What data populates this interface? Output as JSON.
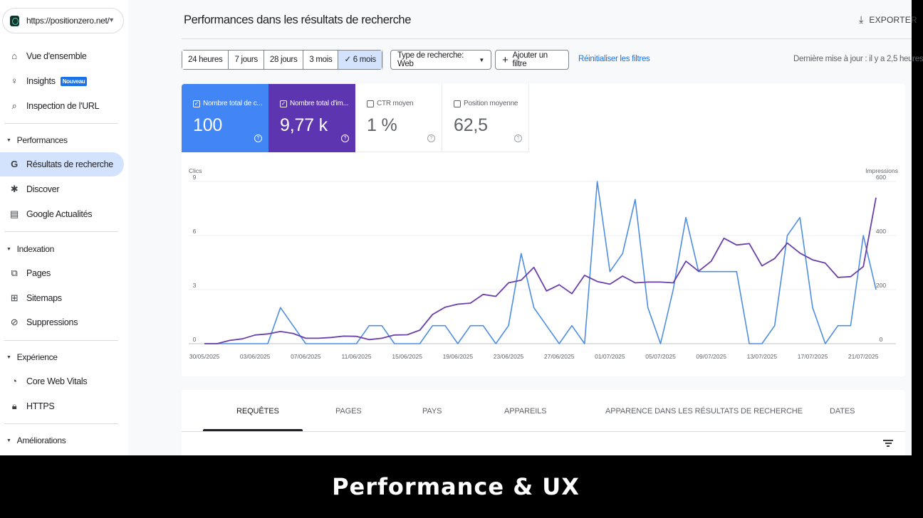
{
  "property": {
    "url": "https://positionzero.net/"
  },
  "sidebar": {
    "items": [
      {
        "label": "Vue d'ensemble",
        "icon": "home-icon"
      },
      {
        "label": "Insights",
        "icon": "lightbulb-icon",
        "badge": "Nouveau"
      },
      {
        "label": "Inspection de l'URL",
        "icon": "search-icon"
      }
    ],
    "sections": {
      "performances": {
        "title": "Performances",
        "items": [
          "Résultats de recherche",
          "Discover",
          "Google Actualités"
        ]
      },
      "indexation": {
        "title": "Indexation",
        "items": [
          "Pages",
          "Sitemaps",
          "Suppressions"
        ]
      },
      "experience": {
        "title": "Expérience",
        "items": [
          "Core Web Vitals",
          "HTTPS"
        ]
      },
      "ameliorations": {
        "title": "Améliorations"
      }
    }
  },
  "header": {
    "title": "Performances dans les résultats de recherche",
    "export_label": "EXPORTER"
  },
  "filters": {
    "ranges": [
      "24 heures",
      "7 jours",
      "28 jours",
      "3 mois",
      "6 mois"
    ],
    "selected_range": "6 mois",
    "search_type": "Type de recherche: Web",
    "add_filter": "Ajouter un filtre",
    "reset": "Réinitialiser les filtres",
    "last_update": "Dernière mise à jour : il y a 2,5 heures"
  },
  "metrics": [
    {
      "label": "Nombre total de c...",
      "value": "100",
      "checked": true,
      "color": "#4285f4"
    },
    {
      "label": "Nombre total d'im...",
      "value": "9,77 k",
      "checked": true,
      "color": "#5e35b1"
    },
    {
      "label": "CTR moyen",
      "value": "1 %",
      "checked": false
    },
    {
      "label": "Position moyenne",
      "value": "62,5",
      "checked": false
    }
  ],
  "chart_data": {
    "type": "line",
    "left_axis_label": "Clics",
    "right_axis_label": "Impressions",
    "left_ylim": [
      0,
      9
    ],
    "left_ticks": [
      "0",
      "3",
      "6",
      "9"
    ],
    "right_ylim": [
      0,
      600
    ],
    "right_ticks": [
      "0",
      "200",
      "400",
      "600"
    ],
    "x_tick_labels": [
      "30/05/2025",
      "03/06/2025",
      "07/06/2025",
      "11/06/2025",
      "15/06/2025",
      "19/06/2025",
      "23/06/2025",
      "27/06/2025",
      "01/07/2025",
      "05/07/2025",
      "09/07/2025",
      "13/07/2025",
      "17/07/2025",
      "21/07/2025"
    ],
    "x_start": "30/05/2025",
    "grid": true,
    "series": [
      {
        "name": "Clics",
        "axis": "left",
        "color": "#4e8ee0",
        "values": [
          0,
          0,
          0,
          0,
          0,
          0,
          2,
          1,
          0,
          0,
          0,
          0,
          0,
          1,
          1,
          0,
          0,
          0,
          1,
          1,
          0,
          1,
          1,
          0,
          1,
          5,
          2,
          1,
          0,
          1,
          0,
          9,
          4,
          5,
          8,
          2,
          0,
          3,
          7,
          4,
          4,
          4,
          4,
          0,
          0,
          1,
          6,
          7,
          2,
          0,
          1,
          1,
          6,
          3
        ]
      },
      {
        "name": "Impressions",
        "axis": "right",
        "color": "#6a3fa8",
        "values": [
          0,
          0,
          12,
          18,
          32,
          36,
          45,
          38,
          20,
          20,
          23,
          28,
          27,
          15,
          20,
          32,
          33,
          50,
          108,
          135,
          146,
          150,
          182,
          175,
          225,
          235,
          282,
          195,
          218,
          185,
          253,
          230,
          220,
          250,
          225,
          228,
          228,
          225,
          305,
          268,
          305,
          390,
          365,
          370,
          288,
          315,
          372,
          335,
          310,
          298,
          245,
          248,
          285,
          540
        ]
      }
    ]
  },
  "tabs": [
    "REQUÊTES",
    "PAGES",
    "PAYS",
    "APPAREILS",
    "APPARENCE DANS LES RÉSULTATS DE RECHERCHE",
    "DATES"
  ],
  "caption": "Performance & UX"
}
